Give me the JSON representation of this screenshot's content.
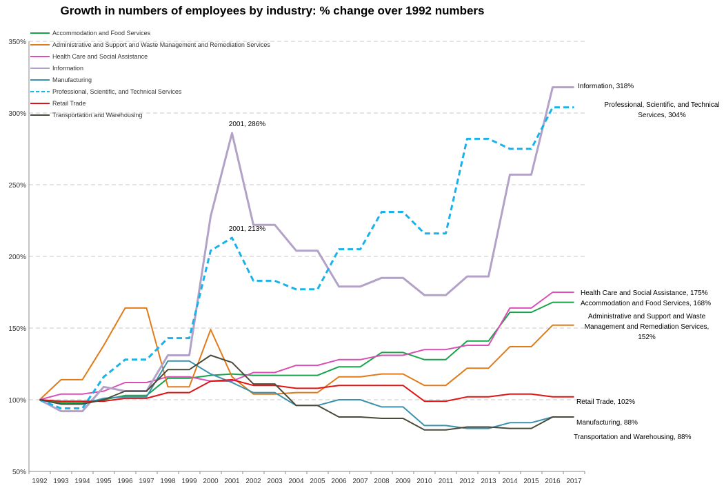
{
  "chart_data": {
    "type": "line",
    "title": "Growth in numbers of employees by industry: % change over 1992 numbers",
    "xlabel": "",
    "ylabel": "",
    "x": [
      "1992",
      "1993",
      "1994",
      "1995",
      "1996",
      "1997",
      "1998",
      "1999",
      "2000",
      "2001",
      "2002",
      "2003",
      "2004",
      "2005",
      "2006",
      "2007",
      "2008",
      "2009",
      "2010",
      "2011",
      "2012",
      "2013",
      "2014",
      "2015",
      "2016",
      "2017"
    ],
    "ylim": [
      50,
      350
    ],
    "yticks": [
      50,
      100,
      150,
      200,
      250,
      300,
      350
    ],
    "ytick_labels": [
      "50%",
      "100%",
      "150%",
      "200%",
      "250%",
      "300%",
      "350%"
    ],
    "grid": "horizontal dashed",
    "legend_position": "top-left",
    "series": [
      {
        "name": "Accommodation and Food Services",
        "color": "#16a34a",
        "dash": "solid",
        "values": [
          100,
          98,
          98,
          100,
          103,
          103,
          115,
          115,
          117,
          118,
          117,
          117,
          117,
          117,
          123,
          123,
          133,
          133,
          128,
          128,
          141,
          141,
          161,
          161,
          168,
          168
        ]
      },
      {
        "name": "Administrative and Support and Waste Management and Remediation Services",
        "color": "#e07b1a",
        "dash": "solid",
        "values": [
          100,
          114,
          114,
          138,
          164,
          164,
          109,
          109,
          149,
          116,
          104,
          104,
          105,
          105,
          116,
          116,
          118,
          118,
          110,
          110,
          122,
          122,
          137,
          137,
          152,
          152
        ]
      },
      {
        "name": "Health Care and Social Assistance",
        "color": "#d94fb5",
        "dash": "solid",
        "values": [
          100,
          104,
          104,
          106,
          112,
          112,
          116,
          116,
          113,
          113,
          119,
          119,
          124,
          124,
          128,
          128,
          131,
          131,
          135,
          135,
          138,
          138,
          164,
          164,
          175,
          175
        ]
      },
      {
        "name": "Information",
        "color": "#b3a2c7",
        "dash": "solid",
        "values": [
          100,
          92,
          92,
          109,
          106,
          106,
          131,
          131,
          228,
          286,
          222,
          222,
          204,
          204,
          179,
          179,
          185,
          185,
          173,
          173,
          186,
          186,
          257,
          257,
          318,
          318
        ]
      },
      {
        "name": "Manufacturing",
        "color": "#3a91ad",
        "dash": "solid",
        "values": [
          100,
          97,
          97,
          101,
          102,
          102,
          127,
          127,
          118,
          112,
          105,
          105,
          96,
          96,
          100,
          100,
          95,
          95,
          82,
          82,
          80,
          80,
          84,
          84,
          88,
          88
        ]
      },
      {
        "name": "Professional, Scientific, and Technical Services",
        "color": "#1ab2ea",
        "dash": "dashed",
        "values": [
          100,
          94,
          94,
          116,
          128,
          128,
          143,
          143,
          204,
          213,
          183,
          183,
          177,
          177,
          205,
          205,
          231,
          231,
          216,
          216,
          282,
          282,
          275,
          275,
          304,
          304
        ]
      },
      {
        "name": "Retail Trade",
        "color": "#e01414",
        "dash": "solid",
        "values": [
          100,
          99,
          99,
          99,
          101,
          101,
          105,
          105,
          113,
          114,
          110,
          110,
          108,
          108,
          110,
          110,
          110,
          110,
          99,
          99,
          102,
          102,
          104,
          104,
          102,
          102
        ]
      },
      {
        "name": "Transportation and Warehousing",
        "color": "#4a4a3a",
        "dash": "solid",
        "values": [
          100,
          97,
          97,
          100,
          106,
          106,
          121,
          121,
          131,
          126,
          111,
          111,
          96,
          96,
          88,
          88,
          87,
          87,
          79,
          79,
          81,
          81,
          80,
          80,
          88,
          88
        ]
      }
    ],
    "annotations": [
      {
        "series": "Information",
        "x": "2001",
        "y": 286,
        "text": "2001, 286%"
      },
      {
        "series": "Professional, Scientific, and Technical Services",
        "x": "2001",
        "y": 213,
        "text": "2001, 213%"
      }
    ],
    "end_labels": [
      {
        "series": "Information",
        "lines": [
          "Information, 318%"
        ]
      },
      {
        "series": "Professional, Scientific, and Technical Services",
        "lines": [
          "Professional, Scientific, and Technical",
          "Services, 304%"
        ]
      },
      {
        "series": "Health Care and Social Assistance",
        "lines": [
          "Health Care and Social Assistance, 175%"
        ]
      },
      {
        "series": "Accommodation and Food Services",
        "lines": [
          "Accommodation and Food Services, 168%"
        ]
      },
      {
        "series": "Administrative and Support and Waste Management and Remediation Services",
        "lines": [
          "Administrative and Support and Waste",
          "Management and Remediation Services,",
          "152%"
        ]
      },
      {
        "series": "Retail Trade",
        "lines": [
          "Retail Trade, 102%"
        ]
      },
      {
        "series": "Manufacturing",
        "lines": [
          "Manufacturing, 88%"
        ]
      },
      {
        "series": "Transportation and Warehousing",
        "lines": [
          "Transportation and Warehousing, 88%"
        ]
      }
    ]
  }
}
